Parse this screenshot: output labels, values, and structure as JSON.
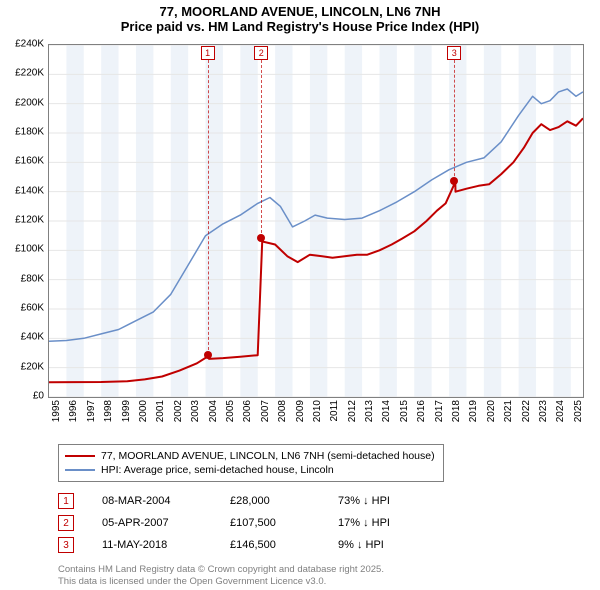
{
  "title_line1": "77, MOORLAND AVENUE, LINCOLN, LN6 7NH",
  "title_line2": "Price paid vs. HM Land Registry's House Price Index (HPI)",
  "chart": {
    "type": "line",
    "background_color": "#ffffff",
    "grid_color": "#e6e6e6",
    "border_color": "#808080",
    "x_min": 1995.0,
    "x_max": 2025.7,
    "y_min": 0,
    "y_max": 240000,
    "y_tick_step": 20000,
    "y_tick_labels": [
      "£0",
      "£20K",
      "£40K",
      "£60K",
      "£80K",
      "£100K",
      "£120K",
      "£140K",
      "£160K",
      "£180K",
      "£200K",
      "£220K",
      "£240K"
    ],
    "x_ticks": [
      1995,
      1996,
      1997,
      1998,
      1999,
      2000,
      2001,
      2002,
      2003,
      2004,
      2005,
      2006,
      2007,
      2008,
      2009,
      2010,
      2011,
      2012,
      2013,
      2014,
      2015,
      2016,
      2017,
      2018,
      2019,
      2020,
      2021,
      2022,
      2023,
      2024,
      2025
    ],
    "alt_band_color": "#eef3f9",
    "series": [
      {
        "name": "price_paid",
        "color": "#c00000",
        "width": 2,
        "points": [
          [
            1995.0,
            10000
          ],
          [
            1998.0,
            10200
          ],
          [
            1999.5,
            10800
          ],
          [
            2000.5,
            12000
          ],
          [
            2001.5,
            14000
          ],
          [
            2002.5,
            18000
          ],
          [
            2003.5,
            23000
          ],
          [
            2004.18,
            28000
          ],
          [
            2004.2,
            26000
          ],
          [
            2005.0,
            26500
          ],
          [
            2006.0,
            27500
          ],
          [
            2007.0,
            28500
          ],
          [
            2007.26,
            107500
          ],
          [
            2007.27,
            106000
          ],
          [
            2008.0,
            104000
          ],
          [
            2008.7,
            96000
          ],
          [
            2009.3,
            92000
          ],
          [
            2010.0,
            97000
          ],
          [
            2010.7,
            96000
          ],
          [
            2011.3,
            95000
          ],
          [
            2012.0,
            96000
          ],
          [
            2012.7,
            97000
          ],
          [
            2013.3,
            97000
          ],
          [
            2014.0,
            100000
          ],
          [
            2014.7,
            104000
          ],
          [
            2015.3,
            108000
          ],
          [
            2016.0,
            113000
          ],
          [
            2016.7,
            120000
          ],
          [
            2017.3,
            127000
          ],
          [
            2017.8,
            132000
          ],
          [
            2018.36,
            146500
          ],
          [
            2018.37,
            140000
          ],
          [
            2019.0,
            142000
          ],
          [
            2019.7,
            144000
          ],
          [
            2020.3,
            145000
          ],
          [
            2021.0,
            152000
          ],
          [
            2021.7,
            160000
          ],
          [
            2022.3,
            170000
          ],
          [
            2022.8,
            180000
          ],
          [
            2023.3,
            186000
          ],
          [
            2023.8,
            182000
          ],
          [
            2024.3,
            184000
          ],
          [
            2024.8,
            188000
          ],
          [
            2025.3,
            185000
          ],
          [
            2025.7,
            190000
          ]
        ]
      },
      {
        "name": "hpi",
        "color": "#6a8fc8",
        "width": 1.5,
        "points": [
          [
            1995.0,
            38000
          ],
          [
            1996.0,
            38500
          ],
          [
            1997.0,
            40000
          ],
          [
            1998.0,
            43000
          ],
          [
            1999.0,
            46000
          ],
          [
            2000.0,
            52000
          ],
          [
            2001.0,
            58000
          ],
          [
            2002.0,
            70000
          ],
          [
            2003.0,
            90000
          ],
          [
            2004.0,
            110000
          ],
          [
            2005.0,
            118000
          ],
          [
            2006.0,
            124000
          ],
          [
            2007.0,
            132000
          ],
          [
            2007.7,
            136000
          ],
          [
            2008.3,
            130000
          ],
          [
            2009.0,
            116000
          ],
          [
            2009.7,
            120000
          ],
          [
            2010.3,
            124000
          ],
          [
            2011.0,
            122000
          ],
          [
            2012.0,
            121000
          ],
          [
            2013.0,
            122000
          ],
          [
            2014.0,
            127000
          ],
          [
            2015.0,
            133000
          ],
          [
            2016.0,
            140000
          ],
          [
            2017.0,
            148000
          ],
          [
            2018.0,
            155000
          ],
          [
            2019.0,
            160000
          ],
          [
            2020.0,
            163000
          ],
          [
            2021.0,
            174000
          ],
          [
            2022.0,
            192000
          ],
          [
            2022.8,
            205000
          ],
          [
            2023.3,
            200000
          ],
          [
            2023.8,
            202000
          ],
          [
            2024.3,
            208000
          ],
          [
            2024.8,
            210000
          ],
          [
            2025.3,
            205000
          ],
          [
            2025.7,
            208000
          ]
        ]
      }
    ],
    "sale_markers": [
      {
        "n": "1",
        "x": 2004.18,
        "y": 28000
      },
      {
        "n": "2",
        "x": 2007.26,
        "y": 107500
      },
      {
        "n": "3",
        "x": 2018.36,
        "y": 146500
      }
    ]
  },
  "legend": {
    "items": [
      {
        "color": "#c00000",
        "label": "77, MOORLAND AVENUE, LINCOLN, LN6 7NH (semi-detached house)"
      },
      {
        "color": "#6a8fc8",
        "label": "HPI: Average price, semi-detached house, Lincoln"
      }
    ]
  },
  "sales": [
    {
      "n": "1",
      "date": "08-MAR-2004",
      "price": "£28,000",
      "diff": "73% ↓ HPI"
    },
    {
      "n": "2",
      "date": "05-APR-2007",
      "price": "£107,500",
      "diff": "17% ↓ HPI"
    },
    {
      "n": "3",
      "date": "11-MAY-2018",
      "price": "£146,500",
      "diff": "9% ↓ HPI"
    }
  ],
  "attribution_line1": "Contains HM Land Registry data © Crown copyright and database right 2025.",
  "attribution_line2": "This data is licensed under the Open Government Licence v3.0."
}
